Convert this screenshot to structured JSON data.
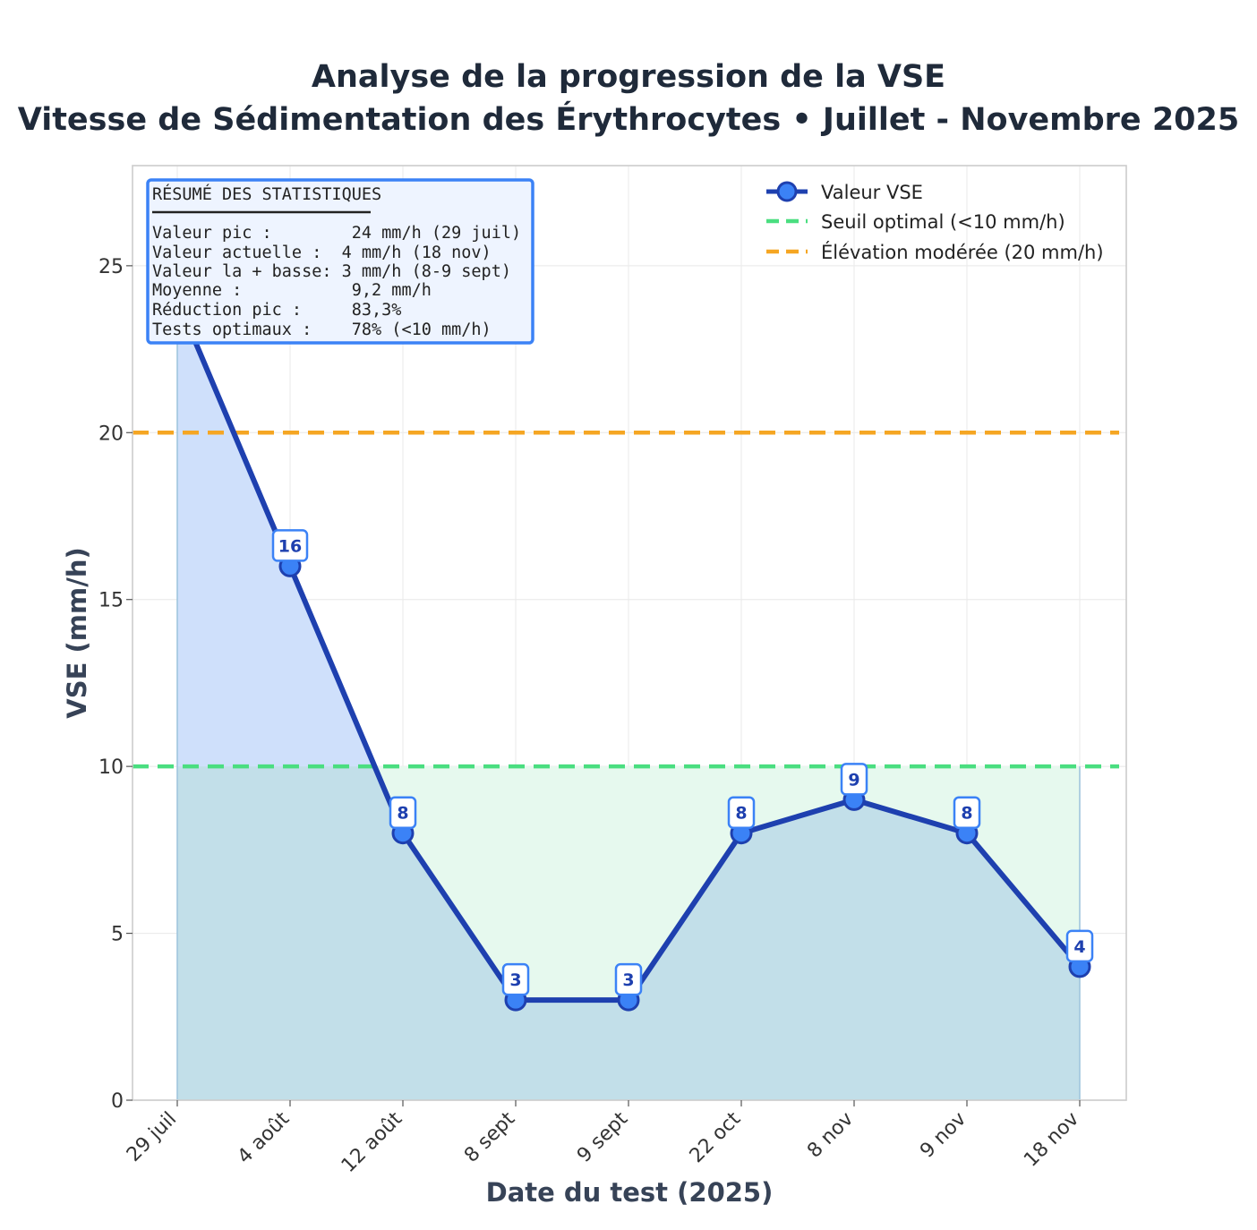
{
  "chart_data": {
    "type": "line",
    "title": "Analyse de la progression de la VSE",
    "subtitle": "Vitesse de Sédimentation des Érythrocytes • Juillet - Novembre 2025",
    "xlabel": "Date du test (2025)",
    "ylabel": "VSE (mm/h)",
    "categories": [
      "29 juil",
      "4 août",
      "12 août",
      "8 sept",
      "9 sept",
      "22 oct",
      "8 nov",
      "9 nov",
      "18 nov"
    ],
    "series": [
      {
        "name": "Valeur VSE",
        "values": [
          24,
          16,
          8,
          3,
          3,
          8,
          9,
          8,
          4
        ],
        "color": "#1e40af",
        "marker_color": "#3b82f6"
      }
    ],
    "data_labels": [
      "16",
      "8",
      "3",
      "3",
      "8",
      "9",
      "8",
      "4"
    ],
    "reference_lines": [
      {
        "name": "Seuil optimal (<10 mm/h)",
        "value": 10,
        "color": "#4ade80",
        "style": "dashed"
      },
      {
        "name": "Élévation modérée (20 mm/h)",
        "value": 20,
        "color": "#f5a623",
        "style": "dashed"
      }
    ],
    "fills": {
      "above_area_color": "#cfe0fb",
      "below_threshold_color": "#e6f9ee",
      "overlap_color": "#c2dfe9"
    },
    "ylim": [
      0,
      28
    ],
    "yticks": [
      "0",
      "5",
      "10",
      "15",
      "20",
      "25"
    ],
    "grid": true,
    "legend_position": "top-right"
  },
  "stats_box": {
    "header": "RÉSUMÉ DES STATISTIQUES",
    "lines": [
      "Valeur pic :        24 mm/h (29 juil)",
      "Valeur actuelle :  4 mm/h (18 nov)",
      "Valeur la + basse: 3 mm/h (8-9 sept)",
      "Moyenne :           9,2 mm/h",
      "Réduction pic :     83,3%",
      "Tests optimaux :    78% (<10 mm/h)"
    ],
    "border_color": "#3b82f6",
    "background": "#eef4ff"
  }
}
